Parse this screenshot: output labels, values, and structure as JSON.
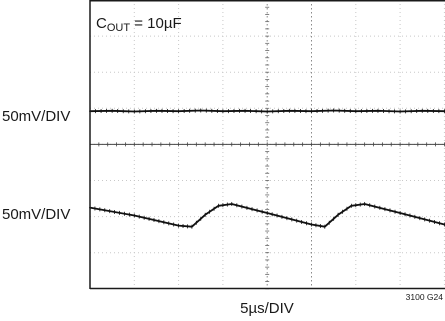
{
  "chart_data": {
    "type": "line",
    "annotation": {
      "prefix": "C",
      "subscript": "OUT",
      "suffix": " = 10µF"
    },
    "upper_label": "50mV/DIV",
    "lower_label": "50mV/DIV",
    "xlabel": "5µs/DIV",
    "figure_id": "3100 G24",
    "grid": true,
    "x_divisions": 9,
    "y_divisions": 8,
    "series": [
      {
        "x": [
          0,
          0.5,
          1,
          1.5,
          2,
          2.5,
          3,
          3.5,
          4,
          4.5,
          5,
          5.5,
          6,
          6.5,
          7,
          7.5,
          8,
          8.5,
          9
        ],
        "y": [
          4.92,
          4.93,
          4.91,
          4.93,
          4.92,
          4.94,
          4.92,
          4.93,
          4.91,
          4.93,
          4.92,
          4.94,
          4.92,
          4.93,
          4.91,
          4.93,
          4.92,
          4.93,
          4.92
        ]
      },
      {
        "x": [
          0,
          1.0,
          2.0,
          2.3,
          2.6,
          2.9,
          3.2,
          4.0,
          5.0,
          5.3,
          5.6,
          5.9,
          6.2,
          7.0,
          8.0,
          8.3,
          8.6,
          8.9,
          9.0
        ],
        "y": [
          2.25,
          2.03,
          1.75,
          1.72,
          2.05,
          2.3,
          2.35,
          2.1,
          1.78,
          1.72,
          2.05,
          2.3,
          2.35,
          2.1,
          1.78,
          1.73,
          2.08,
          2.28,
          2.3
        ]
      }
    ]
  }
}
